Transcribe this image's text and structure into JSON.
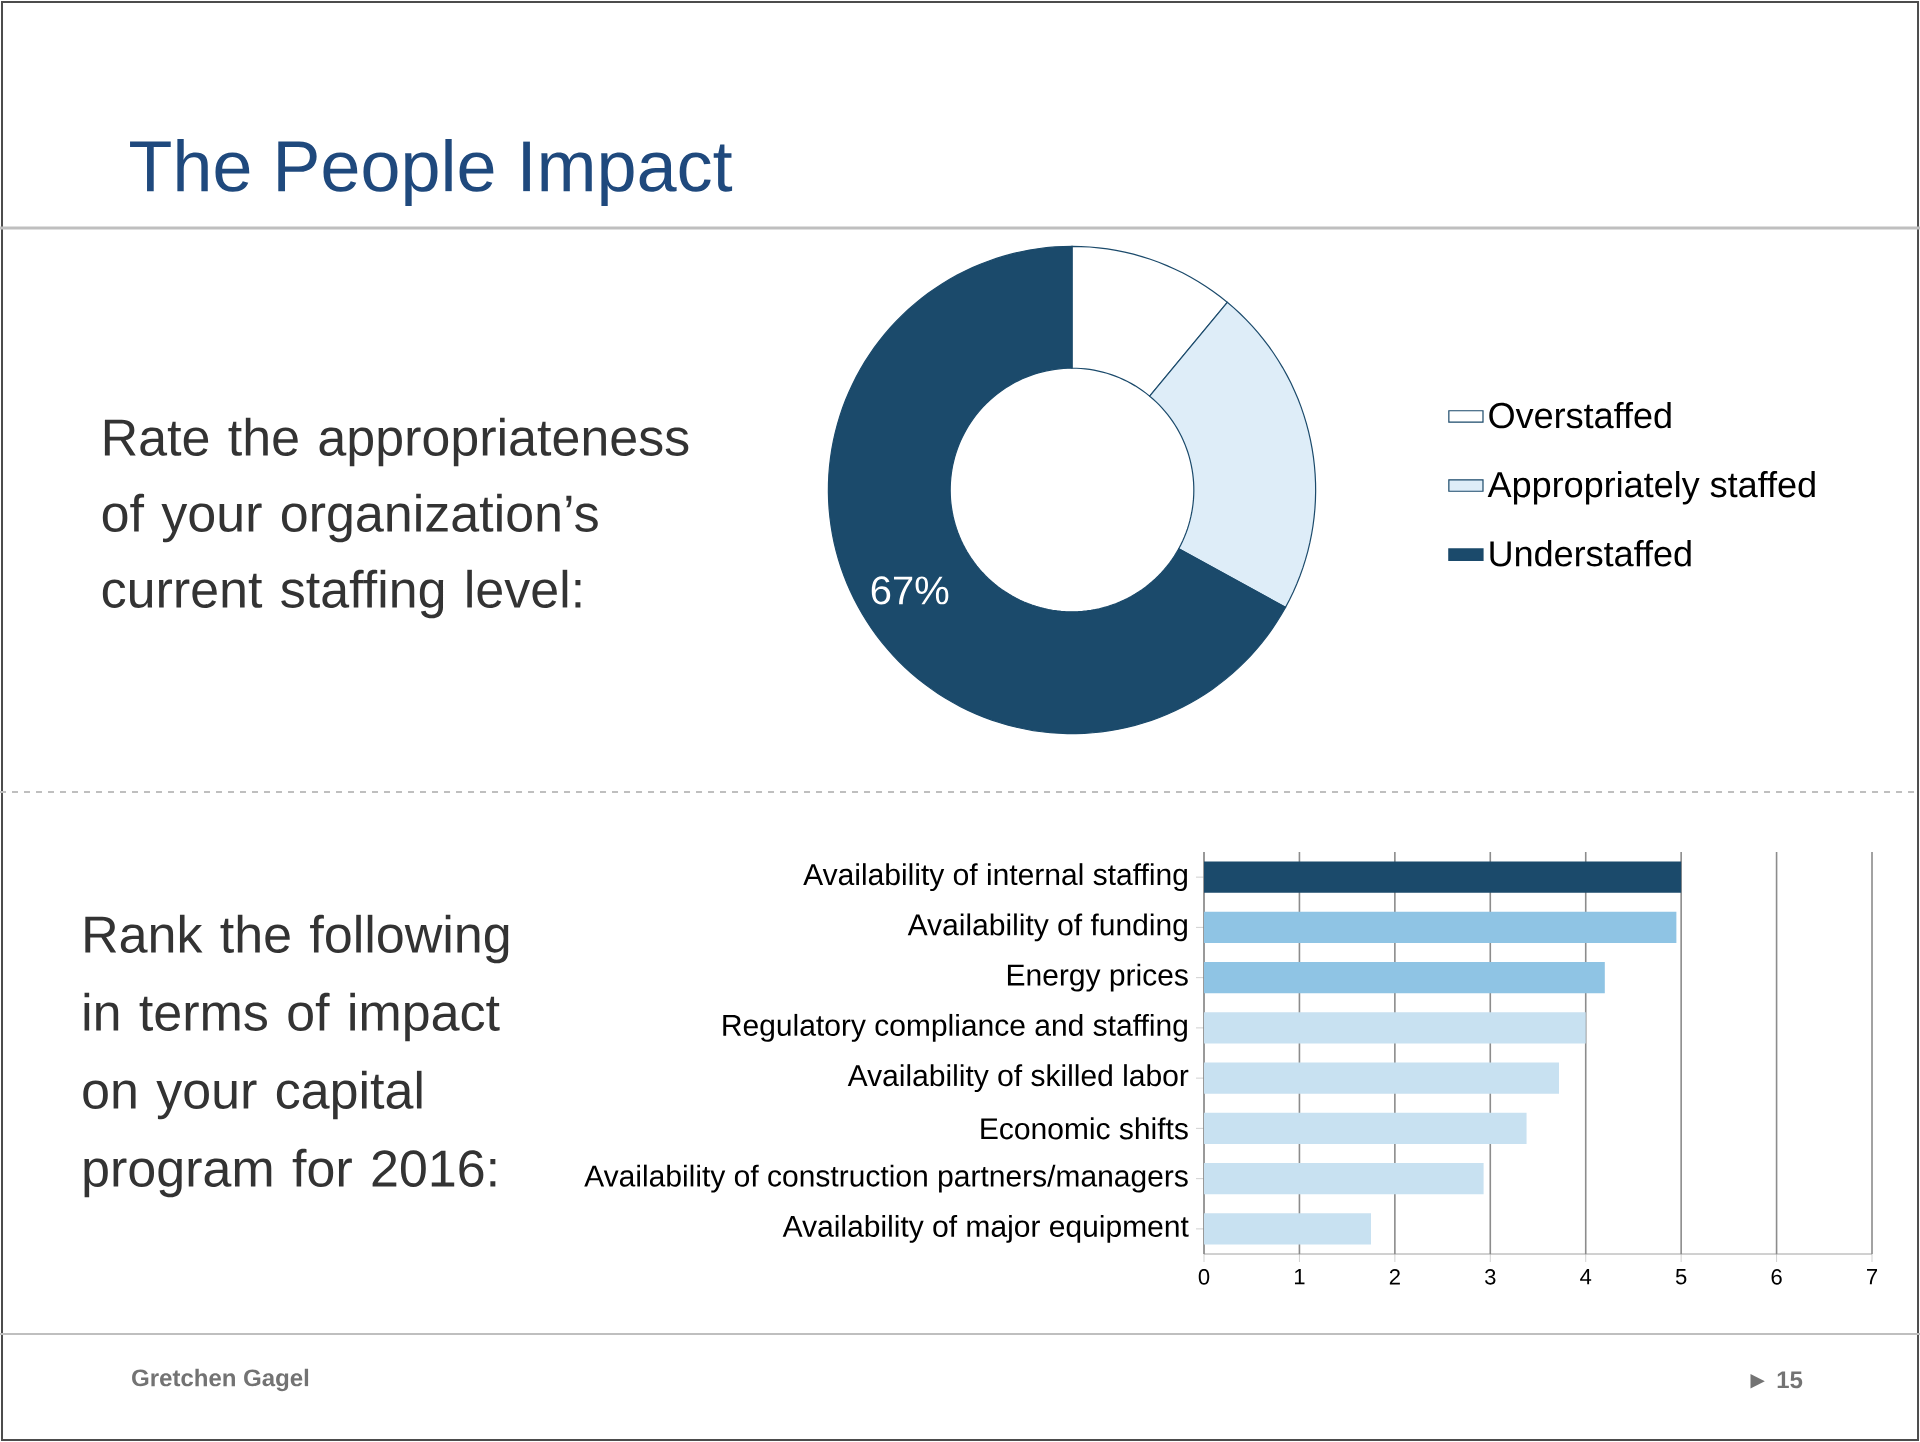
{
  "chart_data": [
    {
      "type": "donut",
      "title": "The People Impact",
      "subtitle": "Rate the appropriateness of your organization’s current staffing level:",
      "categories": [
        "Overstaffed",
        "Appropriately staffed",
        "Understaffed"
      ],
      "values": [
        11,
        22,
        67
      ],
      "colors": [
        "#ffffff",
        "#deedf8",
        "#1b4a6b"
      ],
      "value_labels": [
        null,
        null,
        "67%"
      ],
      "legend": "right"
    },
    {
      "type": "bar",
      "orientation": "horizontal",
      "subtitle": "Rank the following in terms of impact on your capital program for 2016:",
      "categories": [
        "Availability of internal staffing",
        "Availability of funding",
        "Energy prices",
        "Regulatory compliance and staffing",
        "Availability of skilled labor",
        "Economic shifts",
        "Availability of construction partners/managers",
        "Availability of major equipment"
      ],
      "values": [
        5,
        4.95,
        4.2,
        4.0,
        3.72,
        3.38,
        2.93,
        1.75
      ],
      "colors": [
        "#1b4a6b",
        "#8fc4e4",
        "#8fc4e4",
        "#c8e1f1",
        "#c8e1f1",
        "#c8e1f1",
        "#c8e1f1",
        "#c8e1f1"
      ],
      "xlim": [
        0,
        7
      ],
      "xticks": [
        0,
        1,
        2,
        3,
        4,
        5,
        6,
        7
      ],
      "grid": "x",
      "annotations": [
        "Gretchen Gagel",
        "► 15"
      ]
    }
  ]
}
